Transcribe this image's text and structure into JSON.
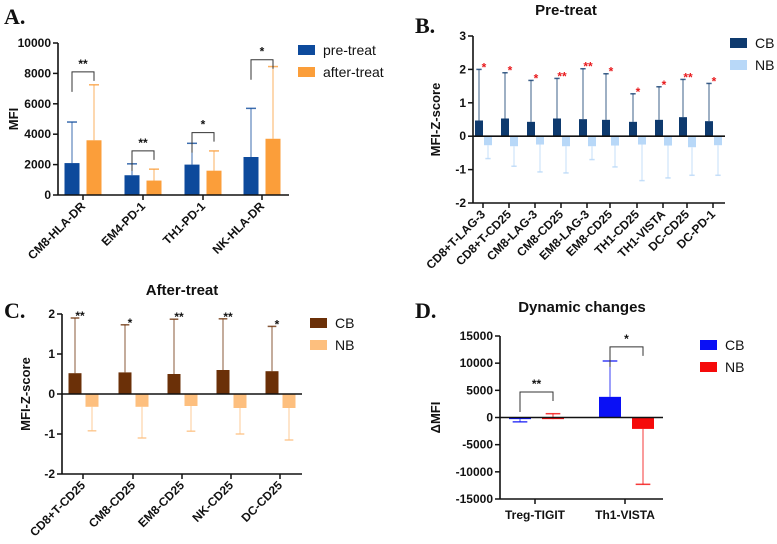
{
  "chart_data": [
    {
      "panel": "A.",
      "type": "bar",
      "title": "",
      "ylabel": "MFI",
      "ylim": [
        0,
        10000
      ],
      "yticks": [
        0,
        2000,
        4000,
        6000,
        8000,
        10000
      ],
      "categories": [
        "CM8-HLA-DR",
        "EM4-PD-1",
        "TH1-PD-1",
        "NK-HLA-DR"
      ],
      "series": [
        {
          "name": "pre-treat",
          "color": "#0d4a9c",
          "values": [
            2100,
            1300,
            2000,
            2500
          ],
          "error_end": [
            4800,
            2050,
            3400,
            5700
          ]
        },
        {
          "name": "after-treat",
          "color": "#fb9e3a",
          "values": [
            3600,
            950,
            1600,
            3700
          ],
          "error_end": [
            7250,
            1700,
            2900,
            8450
          ]
        }
      ],
      "significance": [
        {
          "label": "**",
          "level": 8100
        },
        {
          "label": "**",
          "level": 2900
        },
        {
          "label": "*",
          "level": 4100
        },
        {
          "label": "*",
          "level": 8900
        }
      ],
      "legend": "right"
    },
    {
      "panel": "B.",
      "type": "bar",
      "title": "Pre-treat",
      "ylabel": "MFI-Z-score",
      "ylim": [
        -2,
        3
      ],
      "yticks": [
        -2,
        -1,
        0,
        1,
        2,
        3
      ],
      "categories": [
        "CD8+T-LAG-3",
        "CD8+T-CD25",
        "CM8-LAG-3",
        "CM8-CD25",
        "EM8-LAG-3",
        "EM8-CD25",
        "TH1-CD25",
        "TH1-VISTA",
        "DC-CD25",
        "DC-PD-1"
      ],
      "series": [
        {
          "name": "CB",
          "color": "#0e3a6e",
          "values": [
            0.47,
            0.53,
            0.43,
            0.53,
            0.51,
            0.49,
            0.43,
            0.49,
            0.57,
            0.45
          ],
          "error_end": [
            2.0,
            1.9,
            1.67,
            1.73,
            2.02,
            1.87,
            1.27,
            1.48,
            1.7,
            1.58
          ]
        },
        {
          "name": "NB",
          "color": "#b8d8f8",
          "values": [
            -0.27,
            -0.3,
            -0.25,
            -0.3,
            -0.3,
            -0.28,
            -0.25,
            -0.28,
            -0.33,
            -0.27
          ],
          "error_end": [
            -0.67,
            -0.9,
            -1.07,
            -1.1,
            -0.7,
            -0.92,
            -1.33,
            -1.25,
            -1.17,
            -1.17
          ]
        }
      ],
      "stars": [
        "*",
        "*",
        "*",
        "**",
        "**",
        "*",
        "*",
        "*",
        "**",
        "*"
      ],
      "star_color": "#e8191c",
      "legend": "right"
    },
    {
      "panel": "C.",
      "type": "bar",
      "title": "After-treat",
      "ylabel": "MFI-Z-score",
      "ylim": [
        -2,
        2
      ],
      "yticks": [
        -2,
        -1,
        0,
        1,
        2
      ],
      "categories": [
        "CD8+T-CD25",
        "CM8-CD25",
        "EM8-CD25",
        "NK-CD25",
        "DC-CD25"
      ],
      "series": [
        {
          "name": "CB",
          "color": "#6b3008",
          "values": [
            0.52,
            0.54,
            0.5,
            0.6,
            0.57
          ],
          "error_end": [
            1.9,
            1.73,
            1.87,
            1.88,
            1.69
          ]
        },
        {
          "name": "NB",
          "color": "#fdbf7e",
          "values": [
            -0.32,
            -0.32,
            -0.3,
            -0.35,
            -0.35
          ],
          "error_end": [
            -0.92,
            -1.1,
            -0.93,
            -1.0,
            -1.15
          ]
        }
      ],
      "stars": [
        "**",
        "*",
        "**",
        "**",
        "*"
      ],
      "star_color": "#111111",
      "legend": "right"
    },
    {
      "panel": "D.",
      "type": "bar",
      "title": "Dynamic changes",
      "ylabel": "ΔMFI",
      "ylim": [
        -15000,
        15000
      ],
      "yticks": [
        -15000,
        -10000,
        -5000,
        0,
        5000,
        10000,
        15000
      ],
      "categories": [
        "Treg-TIGIT",
        "Th1-VISTA"
      ],
      "series": [
        {
          "name": "CB",
          "color": "#0a10f5",
          "values": [
            -300,
            3800
          ],
          "error_end": [
            -800,
            10400
          ]
        },
        {
          "name": "NB",
          "color": "#f50a0a",
          "values": [
            -300,
            -2100
          ],
          "error_end": [
            700,
            -12300
          ]
        }
      ],
      "significance": [
        {
          "label": "**",
          "level": 4700
        },
        {
          "label": "*",
          "level": 13000
        }
      ],
      "legend": "right"
    }
  ]
}
